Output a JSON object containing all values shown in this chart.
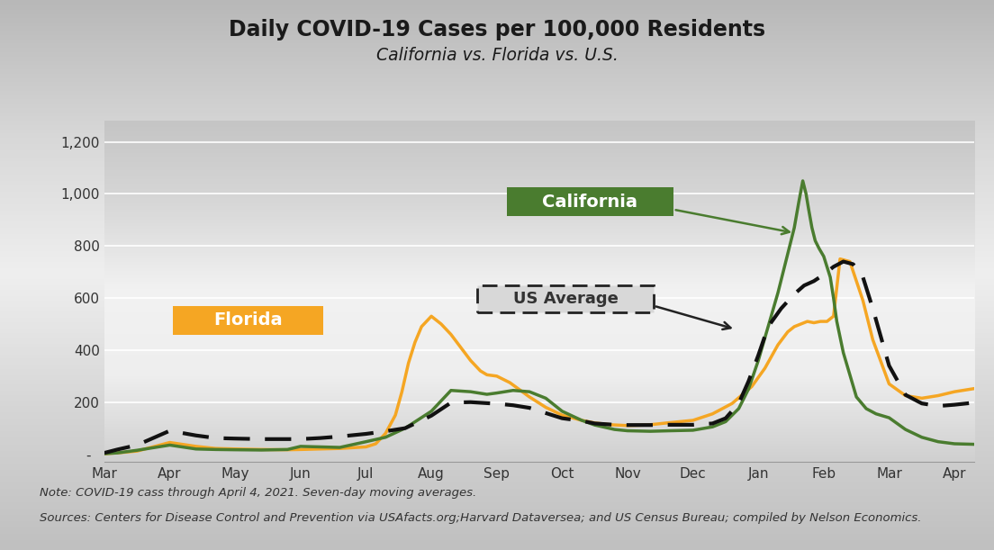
{
  "title": "Daily COVID-19 Cases per 100,000 Residents",
  "subtitle": "California vs. Florida vs. U.S.",
  "note": "Note: COVID-19 cass through April 4, 2021. Seven-day moving averages.",
  "source": "Sources: Centers for Disease Control and Prevention via USAfacts.org;Harvard Dataversea; and US Census Bureau; compiled by Nelson Economics.",
  "florida_color": "#F5A623",
  "california_color": "#4a7c2f",
  "us_color": "#111111",
  "x_labels": [
    "Mar",
    "Apr",
    "May",
    "Jun",
    "Jul",
    "Aug",
    "Sep",
    "Oct",
    "Nov",
    "Dec",
    "Jan",
    "Feb",
    "Mar",
    "Apr"
  ],
  "ytick_vals": [
    0,
    200,
    400,
    600,
    800,
    1000,
    1200
  ],
  "ytick_labels": [
    "-  ",
    "200",
    "400",
    "600",
    "800",
    "1,000",
    "1,200"
  ],
  "bg_top": "#c8c8c8",
  "bg_mid": "#d8d8d8",
  "bg_bot": "#bebebe",
  "plot_bg_top": "#f0f0f0",
  "plot_bg_bot": "#c8c8c8"
}
